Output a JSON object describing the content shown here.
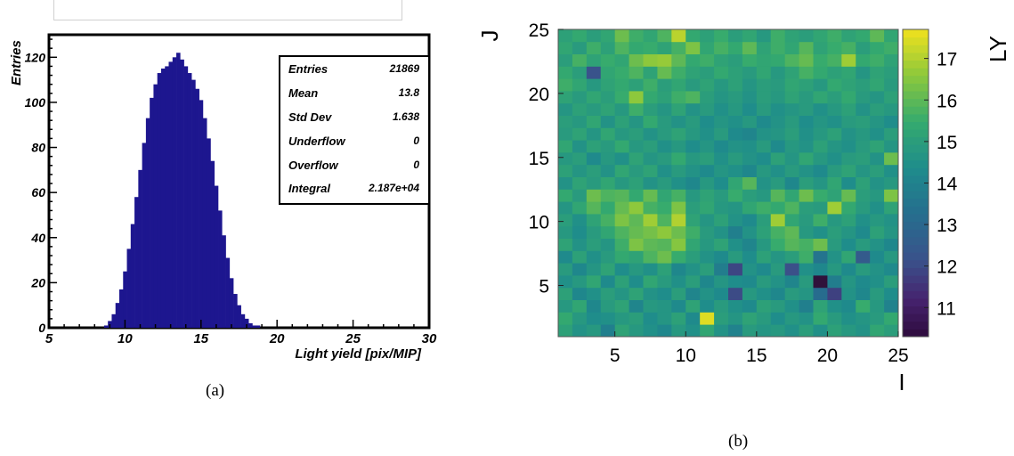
{
  "chart_data": [
    {
      "type": "bar",
      "xlabel": "Light yield [pix/MIP]",
      "ylabel": "Entries",
      "xlim": [
        5,
        30
      ],
      "ylim": [
        0,
        130
      ],
      "x_ticks": [
        "5",
        "10",
        "15",
        "20",
        "25",
        "30"
      ],
      "y_ticks": [
        "0",
        "20",
        "40",
        "60",
        "80",
        "100",
        "120"
      ],
      "color": "#1d168f",
      "stats": [
        {
          "label": "Entries",
          "value": "21869"
        },
        {
          "label": "Mean",
          "value": "13.8"
        },
        {
          "label": "Std Dev",
          "value": "1.638"
        },
        {
          "label": "Underflow",
          "value": "0"
        },
        {
          "label": "Overflow",
          "value": "0"
        },
        {
          "label": "Integral",
          "value": "2.187e+04"
        }
      ],
      "caption": "(a)",
      "x": [
        8.75,
        9.0,
        9.25,
        9.5,
        9.75,
        10.0,
        10.25,
        10.5,
        10.75,
        11.0,
        11.25,
        11.5,
        11.75,
        12.0,
        12.25,
        12.5,
        12.75,
        13.0,
        13.25,
        13.5,
        13.75,
        14.0,
        14.25,
        14.5,
        14.75,
        15.0,
        15.25,
        15.5,
        15.75,
        16.0,
        16.25,
        16.5,
        16.75,
        17.0,
        17.25,
        17.5,
        17.75,
        18.0,
        18.25,
        18.5,
        18.75,
        19.0
      ],
      "values": [
        1,
        3,
        6,
        11,
        17,
        25,
        35,
        46,
        58,
        70,
        82,
        93,
        102,
        108,
        113,
        115,
        116,
        118,
        120,
        122,
        119,
        116,
        113,
        110,
        106,
        101,
        93,
        84,
        74,
        63,
        52,
        41,
        31,
        22,
        15,
        10,
        6,
        4,
        2,
        1,
        1,
        0
      ]
    },
    {
      "type": "heatmap",
      "xlabel": "I",
      "ylabel": "J",
      "colorbar_label": "LY",
      "xlim": [
        1,
        25
      ],
      "ylim": [
        1,
        25
      ],
      "x_ticks": [
        "5",
        "10",
        "15",
        "20",
        "25"
      ],
      "y_ticks": [
        "5",
        "10",
        "15",
        "20",
        "25"
      ],
      "z_ticks": [
        "11",
        "12",
        "13",
        "14",
        "15",
        "16",
        "17"
      ],
      "zlim": [
        10.3,
        17.7
      ],
      "caption": "(b)",
      "z": [
        [
          15.1,
          14.6,
          14.8,
          13.9,
          15.2,
          14.8,
          14.5,
          14.2,
          14.8,
          14.5,
          15.3,
          14.6,
          14.0,
          14.9,
          14.7,
          14.8,
          14.5,
          15.0,
          14.5,
          15.1,
          14.8,
          14.6,
          15.3,
          15.0
        ],
        [
          15.4,
          14.8,
          14.4,
          14.5,
          14.8,
          15.0,
          14.4,
          14.7,
          15.1,
          14.3,
          17.5,
          15.0,
          14.7,
          15.2,
          14.9,
          14.4,
          14.8,
          14.6,
          15.4,
          14.9,
          14.5,
          14.7,
          14.9,
          15.4
        ],
        [
          14.8,
          15.3,
          14.2,
          14.9,
          15.2,
          14.1,
          14.8,
          14.7,
          14.3,
          15.2,
          14.4,
          14.9,
          14.5,
          14.3,
          15.1,
          14.9,
          14.5,
          13.9,
          15.2,
          14.5,
          14.3,
          15.5,
          14.8,
          14.0
        ],
        [
          15.1,
          14.2,
          14.5,
          15.0,
          14.7,
          15.2,
          14.6,
          14.4,
          15.0,
          14.1,
          14.6,
          14.3,
          12.0,
          14.8,
          14.5,
          14.2,
          14.9,
          14.7,
          13.2,
          11.8,
          14.6,
          14.2,
          14.9,
          14.4
        ],
        [
          14.5,
          14.8,
          15.3,
          14.3,
          15.1,
          14.4,
          15.3,
          14.9,
          14.5,
          15.0,
          14.2,
          14.7,
          14.4,
          14.3,
          14.9,
          14.6,
          14.1,
          14.9,
          10.3,
          13.8,
          14.7,
          14.3,
          14.5,
          15.0
        ],
        [
          14.9,
          14.2,
          14.7,
          15.2,
          14.4,
          14.8,
          14.5,
          15.1,
          14.2,
          14.6,
          15.0,
          13.8,
          11.9,
          14.6,
          14.3,
          14.9,
          12.1,
          14.5,
          14.2,
          14.8,
          14.3,
          14.9,
          14.6,
          14.3
        ],
        [
          14.3,
          15.1,
          14.5,
          14.9,
          15.4,
          15.2,
          15.8,
          16.2,
          15.5,
          15.0,
          14.6,
          14.3,
          14.9,
          14.4,
          15.1,
          14.7,
          15.0,
          15.6,
          13.5,
          14.6,
          15.3,
          12.5,
          14.3,
          14.8
        ],
        [
          15.2,
          14.6,
          15.0,
          14.7,
          15.6,
          16.4,
          16.0,
          15.9,
          16.5,
          15.3,
          14.8,
          15.2,
          14.5,
          14.1,
          14.8,
          15.5,
          15.9,
          15.7,
          16.2,
          14.9,
          14.4,
          14.9,
          14.6,
          14.2
        ],
        [
          14.8,
          14.4,
          14.9,
          15.3,
          15.8,
          16.1,
          16.3,
          16.6,
          16.2,
          15.6,
          14.9,
          14.6,
          13.9,
          14.6,
          15.1,
          15.7,
          16.0,
          14.8,
          14.5,
          15.0,
          14.7,
          14.3,
          15.1,
          14.7
        ],
        [
          15.0,
          14.5,
          15.2,
          15.7,
          16.4,
          16.0,
          16.8,
          15.8,
          17.0,
          15.2,
          14.7,
          15.1,
          14.6,
          14.3,
          15.0,
          16.8,
          15.3,
          14.9,
          15.6,
          14.8,
          15.1,
          14.5,
          14.8,
          14.6
        ],
        [
          14.7,
          15.3,
          15.9,
          15.4,
          16.1,
          16.6,
          15.7,
          15.5,
          16.4,
          15.0,
          15.3,
          14.8,
          14.7,
          15.3,
          15.6,
          15.4,
          15.8,
          15.0,
          14.9,
          16.8,
          15.4,
          14.9,
          14.5,
          15.2
        ],
        [
          15.4,
          14.9,
          16.2,
          15.8,
          15.9,
          15.4,
          16.1,
          15.3,
          15.7,
          14.8,
          15.2,
          14.9,
          15.5,
          15.0,
          14.8,
          15.9,
          15.3,
          16.2,
          15.5,
          15.2,
          16.1,
          15.0,
          14.8,
          16.4
        ],
        [
          14.6,
          15.2,
          14.9,
          15.3,
          14.8,
          15.1,
          14.6,
          14.9,
          14.5,
          14.2,
          14.8,
          14.4,
          15.3,
          15.9,
          14.6,
          14.9,
          14.2,
          15.0,
          14.7,
          15.3,
          14.4,
          15.1,
          14.6,
          14.8
        ],
        [
          15.1,
          14.7,
          15.0,
          14.6,
          15.3,
          14.9,
          15.2,
          14.5,
          14.9,
          14.6,
          14.3,
          14.7,
          14.5,
          14.2,
          14.8,
          14.5,
          14.9,
          14.6,
          14.3,
          14.9,
          15.2,
          14.7,
          15.0,
          14.5
        ],
        [
          14.8,
          15.0,
          14.3,
          14.8,
          14.5,
          15.2,
          14.7,
          14.9,
          15.4,
          14.8,
          15.0,
          14.5,
          14.9,
          14.6,
          14.4,
          15.1,
          14.7,
          15.3,
          14.8,
          14.5,
          14.9,
          15.0,
          14.6,
          16.2
        ],
        [
          15.3,
          14.6,
          15.1,
          14.9,
          15.4,
          14.8,
          15.0,
          14.5,
          14.8,
          14.4,
          14.7,
          14.3,
          14.6,
          14.5,
          14.9,
          14.3,
          14.8,
          14.6,
          15.1,
          14.7,
          14.5,
          14.9,
          15.2,
          14.7
        ],
        [
          14.9,
          15.2,
          14.7,
          15.3,
          14.8,
          15.0,
          14.6,
          14.9,
          15.2,
          14.8,
          14.5,
          14.9,
          14.3,
          14.1,
          14.6,
          14.7,
          15.0,
          14.5,
          14.8,
          15.1,
          14.6,
          14.8,
          14.5,
          15.0
        ],
        [
          15.0,
          14.8,
          15.3,
          14.6,
          15.1,
          14.7,
          15.4,
          14.9,
          14.6,
          14.9,
          14.4,
          14.7,
          14.5,
          14.8,
          14.3,
          14.6,
          14.9,
          14.4,
          14.7,
          14.5,
          14.9,
          15.0,
          14.7,
          14.4
        ],
        [
          14.7,
          15.1,
          14.9,
          15.2,
          14.8,
          15.6,
          15.0,
          14.7,
          15.2,
          14.6,
          14.9,
          14.5,
          14.8,
          14.4,
          14.9,
          14.5,
          14.7,
          14.9,
          14.5,
          14.8,
          15.1,
          14.6,
          15.0,
          14.8
        ],
        [
          15.2,
          14.9,
          15.3,
          15.0,
          15.5,
          16.6,
          15.4,
          15.1,
          15.6,
          15.8,
          15.0,
          14.7,
          14.9,
          14.6,
          15.0,
          14.8,
          15.2,
          14.9,
          15.3,
          15.0,
          15.4,
          14.9,
          14.7,
          15.1
        ],
        [
          15.6,
          15.3,
          14.8,
          15.2,
          15.4,
          15.1,
          15.6,
          15.0,
          15.3,
          14.9,
          15.2,
          14.8,
          15.1,
          14.7,
          15.0,
          14.9,
          15.3,
          15.1,
          14.8,
          15.4,
          15.2,
          15.0,
          15.3,
          14.9
        ],
        [
          15.4,
          15.0,
          12.2,
          15.3,
          15.5,
          15.8,
          15.2,
          16.1,
          15.6,
          15.2,
          15.0,
          15.4,
          15.1,
          14.9,
          15.3,
          14.8,
          15.2,
          15.7,
          15.4,
          15.1,
          15.3,
          14.7,
          15.2,
          15.0
        ],
        [
          15.0,
          15.7,
          15.2,
          15.5,
          15.3,
          16.2,
          16.6,
          16.7,
          16.0,
          15.4,
          15.6,
          15.2,
          15.0,
          15.5,
          15.3,
          15.4,
          15.8,
          16.1,
          15.5,
          15.7,
          16.8,
          15.4,
          15.6,
          15.2
        ],
        [
          15.3,
          14.9,
          15.6,
          15.1,
          15.8,
          15.4,
          15.5,
          15.2,
          15.7,
          16.4,
          15.3,
          15.7,
          15.4,
          16.0,
          15.2,
          15.6,
          15.3,
          15.9,
          15.2,
          15.5,
          15.7,
          15.0,
          15.4,
          15.6
        ],
        [
          15.1,
          15.4,
          15.0,
          15.3,
          16.2,
          15.6,
          15.3,
          15.8,
          17.1,
          15.4,
          15.1,
          15.5,
          15.0,
          15.3,
          14.8,
          15.6,
          15.2,
          15.0,
          15.3,
          15.6,
          15.2,
          15.4,
          16.0,
          15.3
        ]
      ]
    }
  ]
}
